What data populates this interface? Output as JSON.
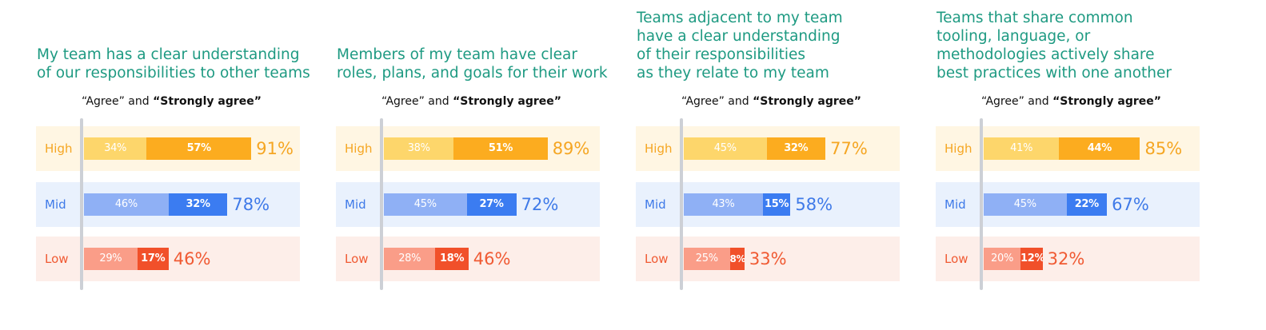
{
  "chart_data": [
    {
      "type": "bar",
      "stacked": true,
      "orientation": "horizontal",
      "title_lines": [
        "My team has a clear understanding",
        "of our responsibilities to other teams"
      ],
      "subtitle": {
        "agree": "“Agree”",
        "and": " and ",
        "strong": "“Strongly agree”"
      },
      "categories": [
        "High",
        "Mid",
        "Low"
      ],
      "series": [
        {
          "name": "Agree",
          "values": [
            34,
            46,
            29
          ]
        },
        {
          "name": "Strongly agree",
          "values": [
            57,
            32,
            17
          ]
        }
      ],
      "totals": [
        91,
        78,
        46
      ],
      "legend": "none"
    },
    {
      "type": "bar",
      "stacked": true,
      "orientation": "horizontal",
      "title_lines": [
        "Members of my team have clear",
        "roles, plans, and goals for their work"
      ],
      "subtitle": {
        "agree": "“Agree”",
        "and": " and ",
        "strong": "“Strongly agree”"
      },
      "categories": [
        "High",
        "Mid",
        "Low"
      ],
      "series": [
        {
          "name": "Agree",
          "values": [
            38,
            45,
            28
          ]
        },
        {
          "name": "Strongly agree",
          "values": [
            51,
            27,
            18
          ]
        }
      ],
      "totals": [
        89,
        72,
        46
      ],
      "legend": "none"
    },
    {
      "type": "bar",
      "stacked": true,
      "orientation": "horizontal",
      "title_lines": [
        "Teams adjacent to my team",
        "have a clear understanding",
        "of their responsibilities",
        "as they relate to my team"
      ],
      "subtitle": {
        "agree": "“Agree”",
        "and": " and ",
        "strong": "“Strongly agree”"
      },
      "categories": [
        "High",
        "Mid",
        "Low"
      ],
      "series": [
        {
          "name": "Agree",
          "values": [
            45,
            43,
            25
          ]
        },
        {
          "name": "Strongly agree",
          "values": [
            32,
            15,
            8
          ]
        }
      ],
      "totals": [
        77,
        58,
        33
      ],
      "legend": "none"
    },
    {
      "type": "bar",
      "stacked": true,
      "orientation": "horizontal",
      "title_lines": [
        "Teams that share common",
        "tooling, language, or",
        "methodologies actively share",
        "best practices with one another"
      ],
      "subtitle": {
        "agree": "“Agree”",
        "and": " and ",
        "strong": "“Strongly agree”"
      },
      "categories": [
        "High",
        "Mid",
        "Low"
      ],
      "series": [
        {
          "name": "Agree",
          "values": [
            41,
            45,
            20
          ]
        },
        {
          "name": "Strongly agree",
          "values": [
            44,
            22,
            12
          ]
        }
      ],
      "totals": [
        85,
        67,
        32
      ],
      "legend": "none"
    }
  ],
  "colors": {
    "title": "#1e9a82",
    "High": {
      "bg": "#fff6e3",
      "agree": "#fdd66b",
      "strong": "#fcac1f",
      "text": "#f5a623"
    },
    "Mid": {
      "bg": "#e9f1fd",
      "agree": "#8fb0f5",
      "strong": "#3b7cf1",
      "text": "#3f7ae8"
    },
    "Low": {
      "bg": "#fdeee9",
      "agree": "#fa9d88",
      "strong": "#f1502a",
      "text": "#f05a33"
    }
  }
}
